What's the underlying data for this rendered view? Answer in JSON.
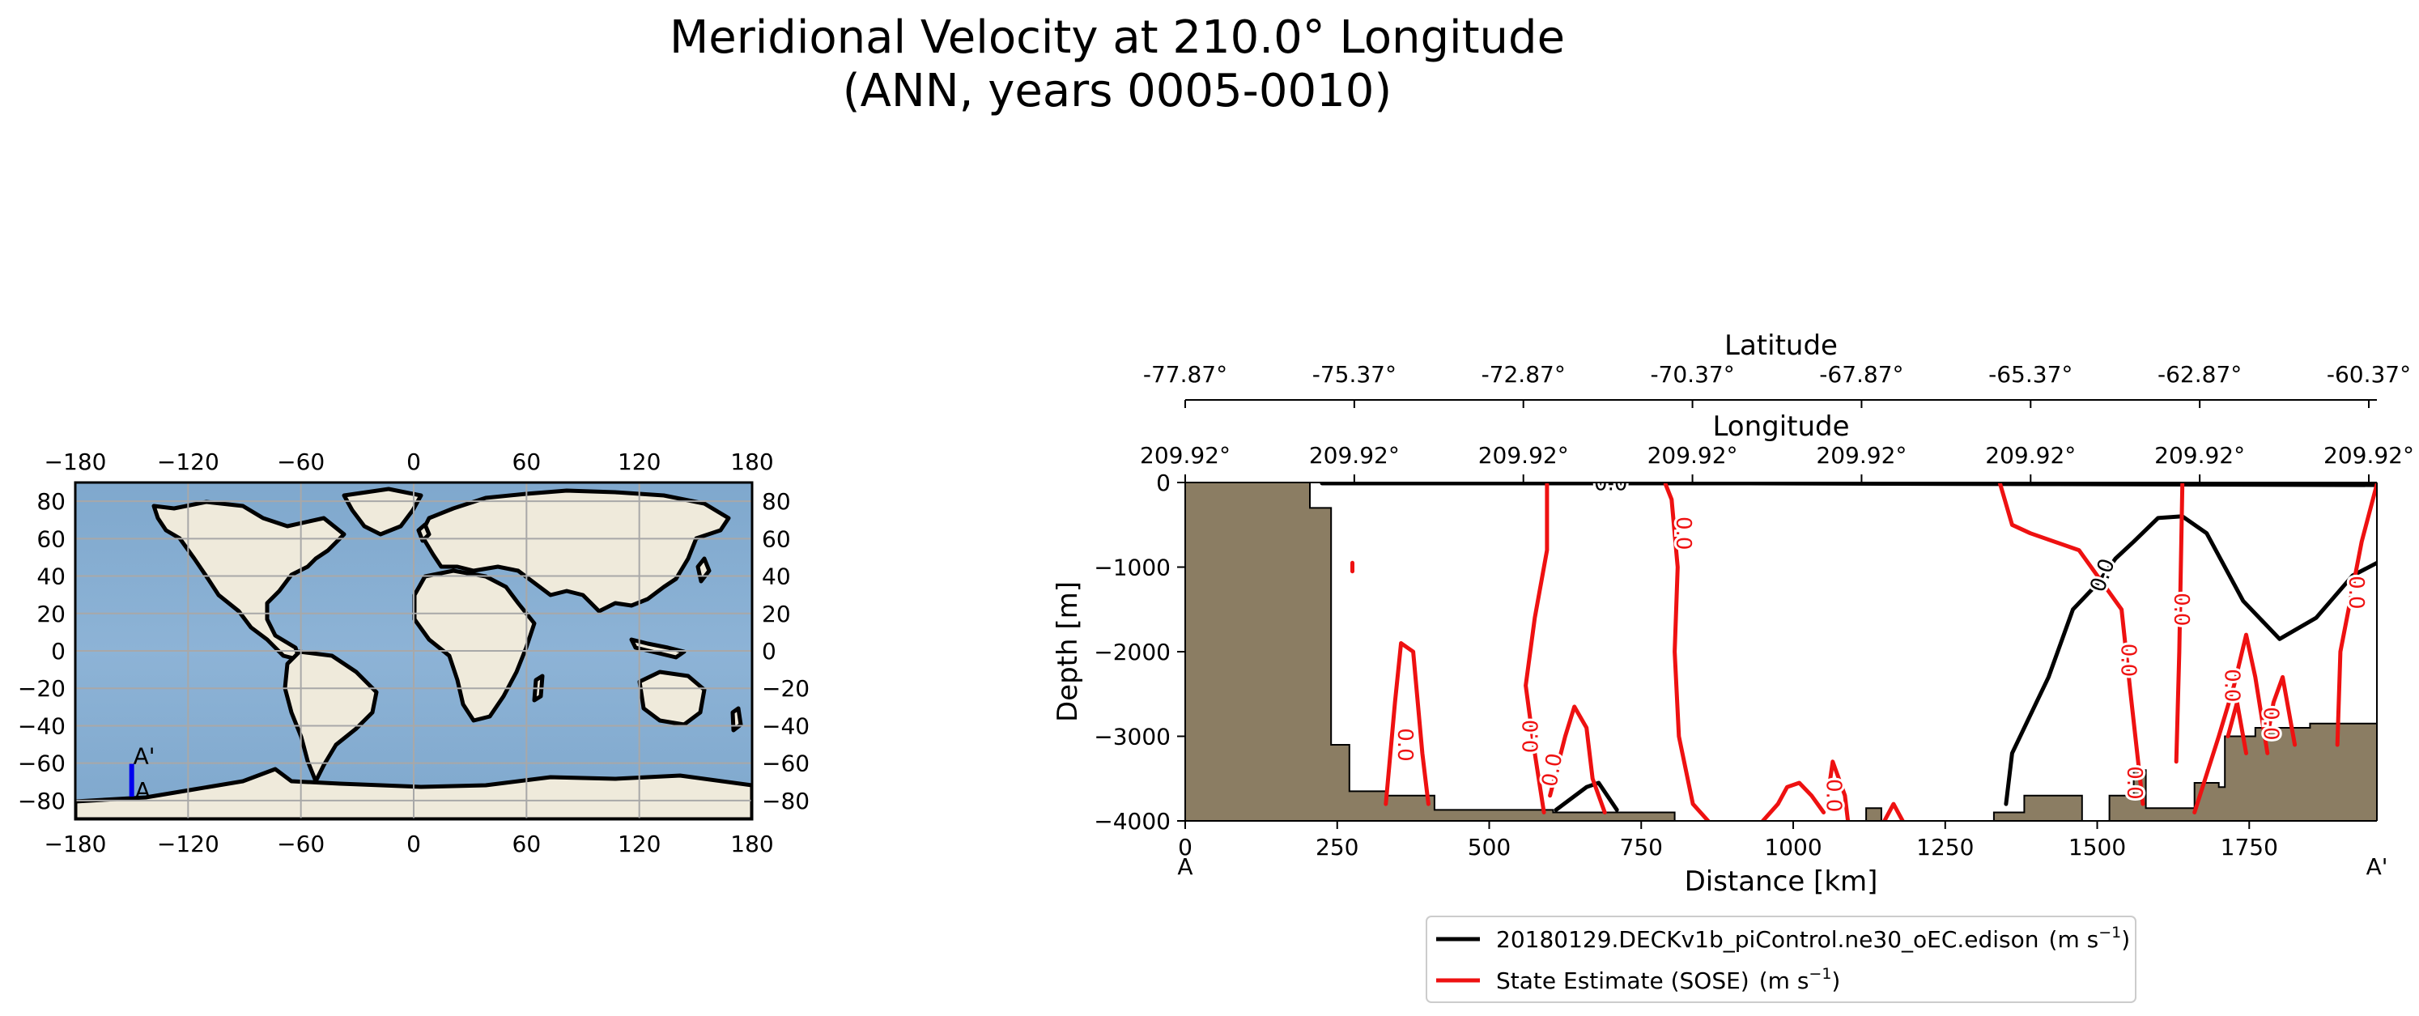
{
  "title_line1": "Meridional Velocity at 210.0° Longitude",
  "title_line2": "(ANN, years 0005-0010)",
  "colors": {
    "ocean": "#7ea7cc",
    "land": "#efeadb",
    "topography": "#8b7d63",
    "model_line": "#000000",
    "sose_line": "#ee1111",
    "transect": "#0000ee"
  },
  "map": {
    "lon_ticks": [
      "−180",
      "−120",
      "−60",
      "0",
      "60",
      "120",
      "180"
    ],
    "lat_ticks": [
      "80",
      "60",
      "40",
      "20",
      "0",
      "−20",
      "−40",
      "−60",
      "−80"
    ],
    "lat_tick_values": [
      80,
      60,
      40,
      20,
      0,
      -20,
      -40,
      -60,
      -80
    ],
    "lon_tick_values": [
      -180,
      -120,
      -60,
      0,
      60,
      120,
      180
    ],
    "lon_range": [
      -180,
      180
    ],
    "lat_range": [
      -90,
      90
    ],
    "transect_lon": -150,
    "transect_lat": [
      -77.87,
      -60.37
    ],
    "label_start": "A",
    "label_end": "A'"
  },
  "chart_data": {
    "type": "line",
    "title": "Meridional Velocity at 210.0° Longitude (ANN, years 0005-0010)",
    "xlabel": "Distance [km]",
    "ylabel": "Depth [m]",
    "xlim": [
      0,
      1960
    ],
    "ylim": [
      -4000,
      0
    ],
    "x_ticks": [
      0,
      250,
      500,
      750,
      1000,
      1250,
      1500,
      1750
    ],
    "x_tick_labels": [
      "0",
      "250",
      "500",
      "750",
      "1000",
      "1250",
      "1500",
      "1750"
    ],
    "y_ticks": [
      0,
      -1000,
      -2000,
      -3000,
      -4000
    ],
    "y_tick_labels": [
      "0",
      "−1000",
      "−2000",
      "−3000",
      "−4000"
    ],
    "start_label": "A",
    "end_label": "A'",
    "lat_axis": {
      "label": "Latitude",
      "ticks": [
        "-77.87°",
        "-75.37°",
        "-72.87°",
        "-70.37°",
        "-67.87°",
        "-65.37°",
        "-62.87°",
        "-60.37°"
      ]
    },
    "lon_axis": {
      "label": "Longitude",
      "ticks": [
        "209.92°",
        "209.92°",
        "209.92°",
        "209.92°",
        "209.92°",
        "209.92°",
        "209.92°",
        "209.92°"
      ]
    },
    "topography": [
      [
        0,
        0
      ],
      [
        205,
        0
      ],
      [
        205,
        -300
      ],
      [
        240,
        -300
      ],
      [
        240,
        -3100
      ],
      [
        270,
        -3100
      ],
      [
        270,
        -3650
      ],
      [
        330,
        -3650
      ],
      [
        330,
        -3700
      ],
      [
        410,
        -3700
      ],
      [
        410,
        -3870
      ],
      [
        605,
        -3870
      ],
      [
        605,
        -3900
      ],
      [
        805,
        -3900
      ],
      [
        805,
        -4000
      ],
      [
        1120,
        -4000
      ],
      [
        1120,
        -3850
      ],
      [
        1145,
        -3850
      ],
      [
        1145,
        -4000
      ],
      [
        1330,
        -4000
      ],
      [
        1330,
        -3900
      ],
      [
        1380,
        -3900
      ],
      [
        1380,
        -3700
      ],
      [
        1475,
        -3700
      ],
      [
        1475,
        -4000
      ],
      [
        1520,
        -4000
      ],
      [
        1520,
        -3700
      ],
      [
        1560,
        -3700
      ],
      [
        1560,
        -3400
      ],
      [
        1580,
        -3400
      ],
      [
        1580,
        -3850
      ],
      [
        1660,
        -3850
      ],
      [
        1660,
        -3550
      ],
      [
        1700,
        -3550
      ],
      [
        1700,
        -3600
      ],
      [
        1710,
        -3600
      ],
      [
        1710,
        -3000
      ],
      [
        1760,
        -3000
      ],
      [
        1760,
        -2900
      ],
      [
        1850,
        -2900
      ],
      [
        1850,
        -2850
      ],
      [
        1960,
        -2850
      ],
      [
        1960,
        -4000
      ],
      [
        0,
        -4000
      ]
    ],
    "series": [
      {
        "name": "20180129.DECKv1b_piControl.ne30_oEC.edison",
        "units": "(m s",
        "units_exp": "−1",
        "units_close": ")",
        "contour_level_label": "0.0",
        "lines": [
          [
            [
              225,
              -10
            ],
            [
              900,
              -10
            ],
            [
              1960,
              -30
            ]
          ],
          [
            [
              1350,
              -3800
            ],
            [
              1360,
              -3200
            ],
            [
              1400,
              -2600
            ],
            [
              1420,
              -2300
            ],
            [
              1460,
              -1500
            ],
            [
              1500,
              -1200
            ],
            [
              1530,
              -900
            ],
            [
              1560,
              -700
            ],
            [
              1600,
              -420
            ],
            [
              1640,
              -400
            ],
            [
              1680,
              -600
            ],
            [
              1740,
              -1400
            ],
            [
              1800,
              -1850
            ],
            [
              1860,
              -1600
            ],
            [
              1920,
              -1100
            ],
            [
              1960,
              -950
            ]
          ],
          [
            [
              610,
              -3870
            ],
            [
              660,
              -3600
            ],
            [
              680,
              -3550
            ],
            [
              710,
              -3870
            ]
          ]
        ]
      },
      {
        "name": "State Estimate (SOSE)",
        "units": "(m s",
        "units_exp": "−1",
        "units_close": ")",
        "contour_level_label": "0.0",
        "lines": [
          [
            [
              590,
              -3900
            ],
            [
              575,
              -3200
            ],
            [
              560,
              -2400
            ],
            [
              575,
              -1600
            ],
            [
              595,
              -800
            ],
            [
              595,
              -20
            ]
          ],
          [
            [
              790,
              -20
            ],
            [
              800,
              -200
            ],
            [
              810,
              -1000
            ],
            [
              805,
              -2000
            ],
            [
              812,
              -3000
            ],
            [
              835,
              -3800
            ],
            [
              860,
              -4000
            ]
          ],
          [
            [
              1340,
              -10
            ],
            [
              1360,
              -500
            ],
            [
              1390,
              -600
            ],
            [
              1470,
              -800
            ],
            [
              1540,
              -1500
            ],
            [
              1555,
              -2500
            ],
            [
              1575,
              -3800
            ]
          ],
          [
            [
              1630,
              -3300
            ],
            [
              1635,
              -2000
            ],
            [
              1640,
              -20
            ]
          ],
          [
            [
              1960,
              -20
            ],
            [
              1935,
              -700
            ],
            [
              1900,
              -2000
            ],
            [
              1895,
              -3100
            ]
          ],
          [
            [
              330,
              -3800
            ],
            [
              345,
              -2600
            ],
            [
              355,
              -1900
            ],
            [
              375,
              -2000
            ],
            [
              390,
              -3200
            ],
            [
              400,
              -3800
            ]
          ],
          [
            [
              600,
              -3700
            ],
            [
              625,
              -3000
            ],
            [
              640,
              -2650
            ],
            [
              660,
              -2900
            ],
            [
              670,
              -3500
            ],
            [
              690,
              -3900
            ]
          ],
          [
            [
              950,
              -4000
            ],
            [
              975,
              -3800
            ],
            [
              990,
              -3600
            ],
            [
              1010,
              -3550
            ],
            [
              1030,
              -3700
            ],
            [
              1050,
              -3900
            ]
          ],
          [
            [
              1060,
              -3550
            ],
            [
              1065,
              -3300
            ],
            [
              1085,
              -3700
            ],
            [
              1090,
              -4000
            ]
          ],
          [
            [
              1150,
              -4000
            ],
            [
              1165,
              -3800
            ],
            [
              1180,
              -4000
            ]
          ],
          [
            [
              1660,
              -3900
            ],
            [
              1700,
              -3000
            ],
            [
              1725,
              -2400
            ],
            [
              1745,
              -1800
            ],
            [
              1760,
              -2300
            ],
            [
              1780,
              -3200
            ]
          ],
          [
            [
              1715,
              -3000
            ],
            [
              1730,
              -2600
            ],
            [
              1745,
              -3200
            ]
          ],
          [
            [
              1780,
              -3000
            ],
            [
              1790,
              -2600
            ],
            [
              1805,
              -2300
            ],
            [
              1815,
              -2700
            ],
            [
              1825,
              -3100
            ]
          ],
          [
            [
              275,
              -1050
            ],
            [
              275,
              -950
            ]
          ]
        ]
      }
    ]
  }
}
